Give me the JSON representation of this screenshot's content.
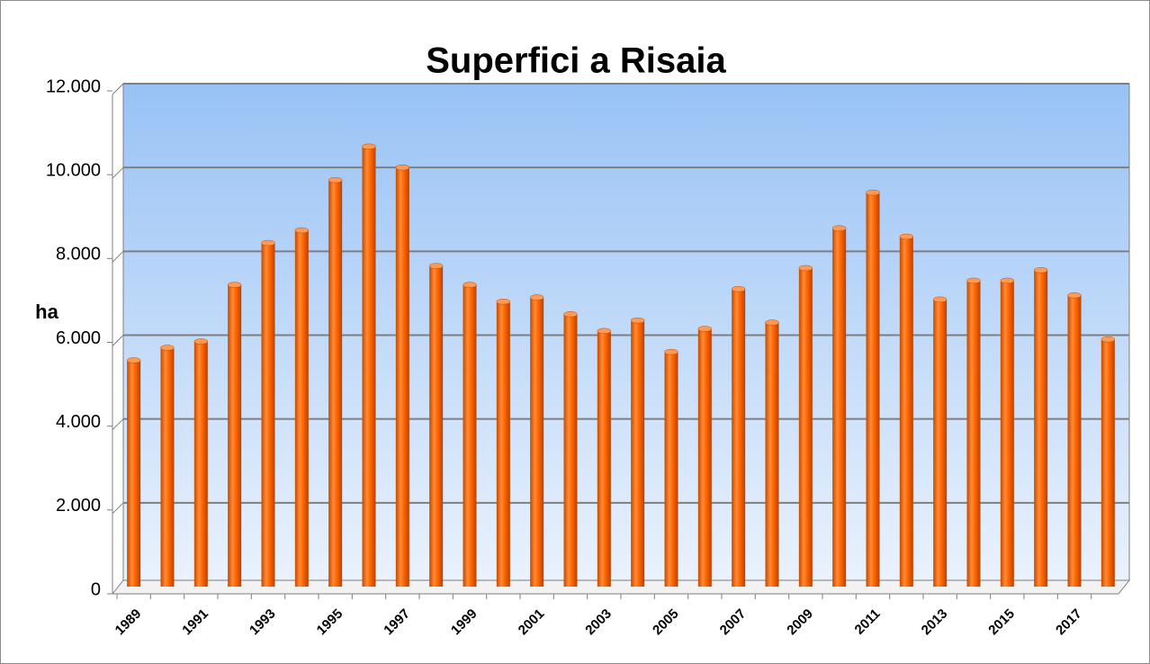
{
  "chart_data": {
    "type": "bar",
    "title": "Superfici a Risaia",
    "y_label": "ha",
    "categories": [
      "1989",
      null,
      "1991",
      null,
      "1993",
      null,
      "1995",
      null,
      "1997",
      null,
      "1999",
      null,
      "2001",
      null,
      "2003",
      null,
      "2005",
      null,
      "2007",
      null,
      "2009",
      null,
      "2011",
      null,
      "2013",
      null,
      "2015",
      null,
      "2017",
      null
    ],
    "values": [
      5400,
      5700,
      5850,
      7200,
      8200,
      8500,
      9700,
      10500,
      10000,
      7650,
      7200,
      6800,
      6900,
      6500,
      6100,
      6350,
      5600,
      6150,
      7100,
      6300,
      7600,
      8550,
      9400,
      8350,
      6850,
      7300,
      7300,
      7550,
      6950,
      5900
    ],
    "color": "#ff6600",
    "ylim": [
      0,
      12000
    ],
    "yticks": [
      0,
      {
        "value": 2000,
        "label": "2.000"
      },
      {
        "value": 4000,
        "label": "4.000"
      },
      {
        "value": 6000,
        "label": "6.000"
      },
      {
        "value": 8000,
        "label": "8.000"
      },
      {
        "value": 10000,
        "label": "10.000"
      },
      {
        "value": 12000,
        "label": "12.000"
      }
    ],
    "grid": true
  }
}
